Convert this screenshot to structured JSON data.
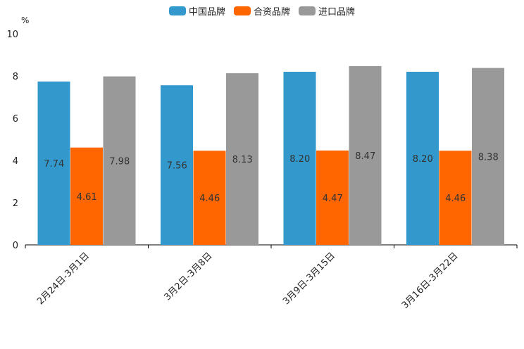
{
  "chart_data": {
    "type": "bar",
    "unit_label": "%",
    "categories": [
      "2月24日-3月1日",
      "3月2日-3月8日",
      "3月9日-3月15日",
      "3月16日-3月22日"
    ],
    "series": [
      {
        "name": "中国品牌",
        "color": "#3399cc",
        "values": [
          7.74,
          7.56,
          8.2,
          8.2
        ],
        "labels": [
          "7.74",
          "7.56",
          "8.20",
          "8.20"
        ]
      },
      {
        "name": "合资品牌",
        "color": "#ff6600",
        "values": [
          4.61,
          4.46,
          4.47,
          4.46
        ],
        "labels": [
          "4.61",
          "4.46",
          "4.47",
          "4.46"
        ]
      },
      {
        "name": "进口品牌",
        "color": "#999999",
        "values": [
          7.98,
          8.13,
          8.47,
          8.38
        ],
        "labels": [
          "7.98",
          "8.13",
          "8.47",
          "8.38"
        ]
      }
    ],
    "ylim": [
      0,
      10
    ],
    "yticks": [
      0,
      2,
      4,
      6,
      8,
      10
    ],
    "legend_position": "top-center"
  }
}
